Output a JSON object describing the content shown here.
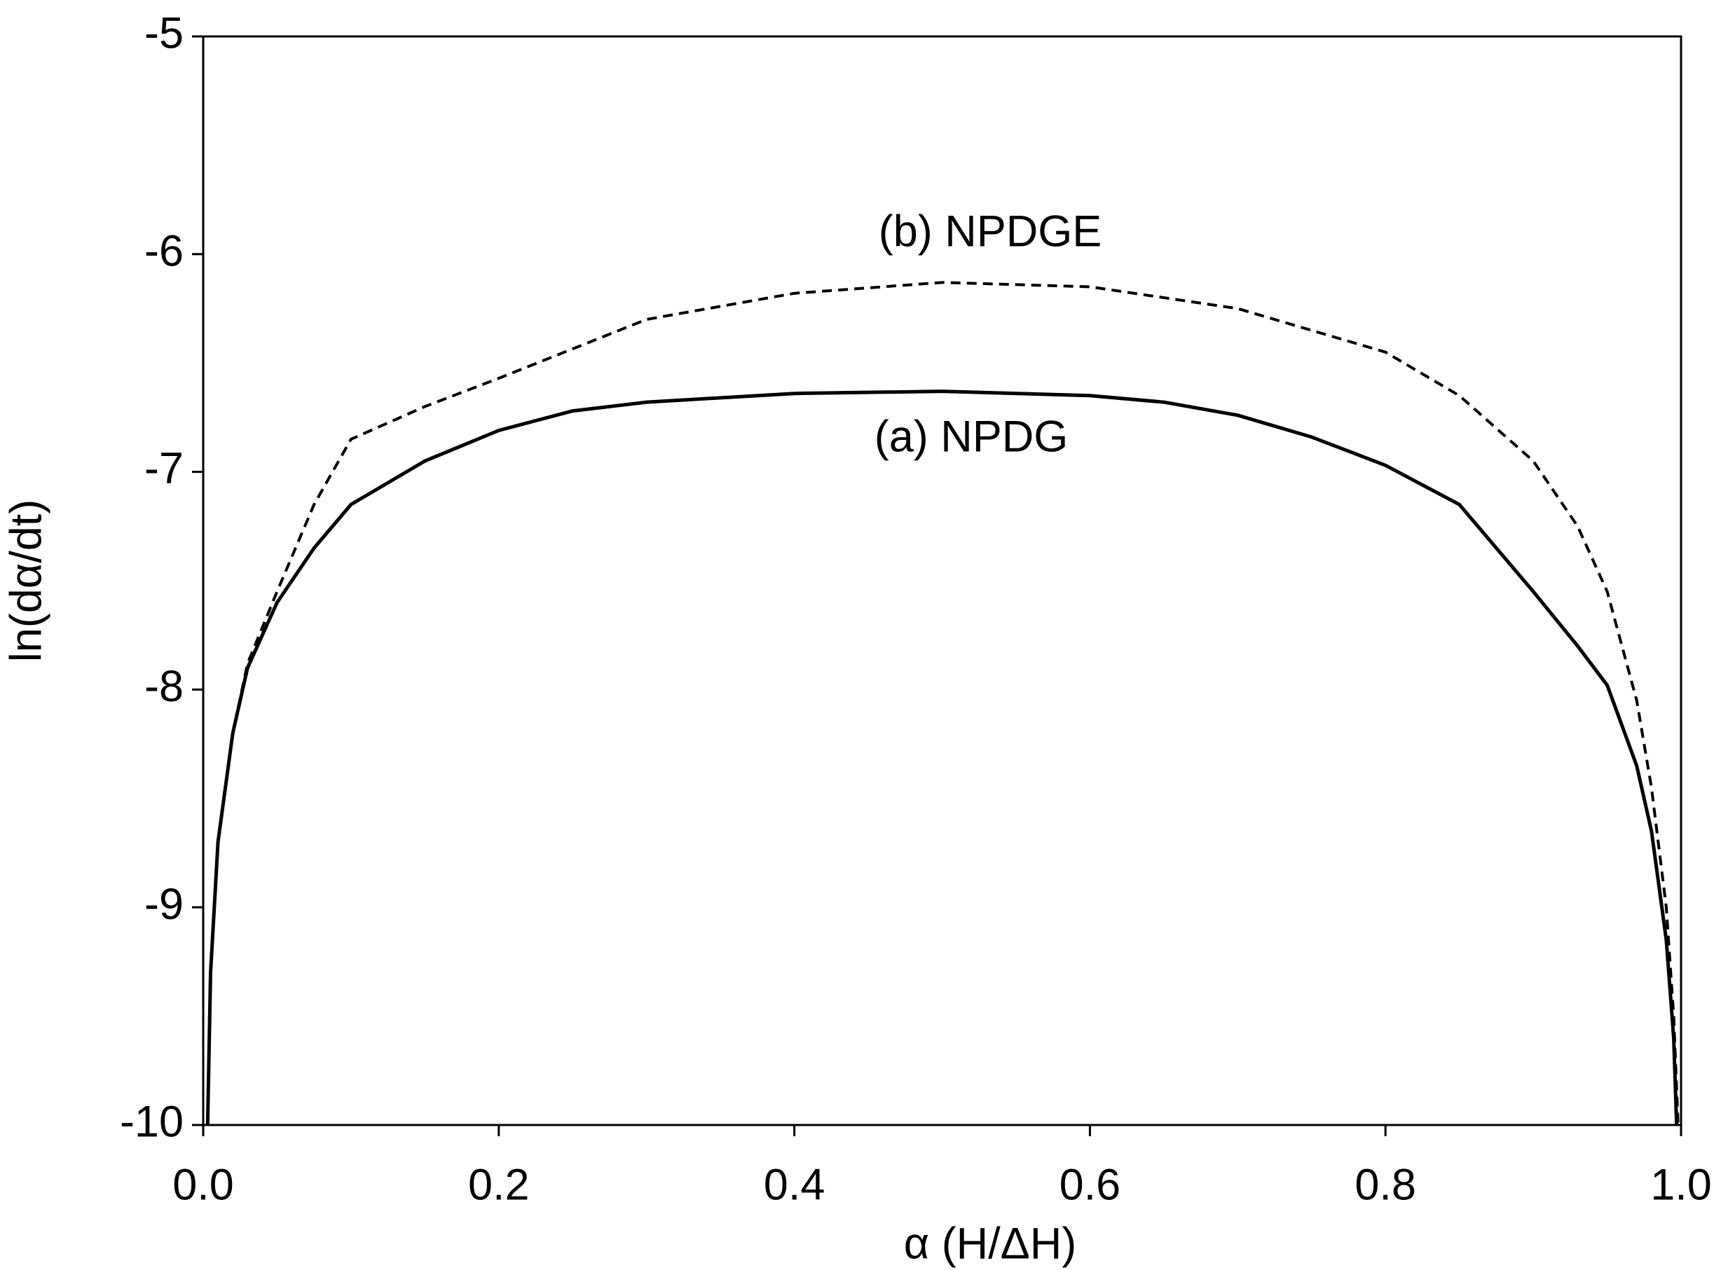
{
  "chart_data": {
    "type": "line",
    "xlabel": "α (H/ΔH)",
    "ylabel": "ln(dα/dt)",
    "annotations": [
      "(b) NPDGE",
      "(a) NPDG"
    ],
    "xlim": [
      0,
      1
    ],
    "ylim": [
      -10,
      -5
    ],
    "xticks": [
      {
        "value": 0,
        "label": "0.0"
      },
      0.2,
      0.4,
      0.6,
      0.8,
      {
        "value": 1,
        "label": "1.0"
      }
    ],
    "yticks": [
      -10,
      -9,
      -8,
      -7,
      -6,
      -5
    ],
    "series": [
      {
        "name": "(a) NPDG",
        "color": "#000000",
        "dash": false,
        "x": [
          0.003,
          0.005,
          0.01,
          0.02,
          0.03,
          0.05,
          0.075,
          0.1,
          0.15,
          0.2,
          0.25,
          0.3,
          0.4,
          0.5,
          0.6,
          0.65,
          0.7,
          0.75,
          0.8,
          0.85,
          0.9,
          0.93,
          0.95,
          0.97,
          0.98,
          0.99,
          0.995,
          0.997
        ],
        "values": [
          -10,
          -9.3,
          -8.7,
          -8.2,
          -7.9,
          -7.6,
          -7.35,
          -7.15,
          -6.95,
          -6.81,
          -6.72,
          -6.68,
          -6.64,
          -6.63,
          -6.65,
          -6.68,
          -6.74,
          -6.84,
          -6.97,
          -7.15,
          -7.55,
          -7.8,
          -7.98,
          -8.35,
          -8.65,
          -9.15,
          -9.6,
          -10
        ]
      },
      {
        "name": "(b) NPDGE",
        "color": "#000000",
        "dash": true,
        "x": [
          0.003,
          0.005,
          0.01,
          0.02,
          0.03,
          0.05,
          0.075,
          0.1,
          0.15,
          0.2,
          0.3,
          0.4,
          0.5,
          0.6,
          0.7,
          0.8,
          0.85,
          0.9,
          0.93,
          0.95,
          0.97,
          0.98,
          0.99,
          0.995,
          0.998
        ],
        "values": [
          -10,
          -9.3,
          -8.7,
          -8.2,
          -7.88,
          -7.55,
          -7.15,
          -6.85,
          -6.7,
          -6.57,
          -6.3,
          -6.18,
          -6.13,
          -6.15,
          -6.25,
          -6.45,
          -6.65,
          -6.95,
          -7.25,
          -7.55,
          -8.05,
          -8.45,
          -9.0,
          -9.5,
          -10
        ]
      }
    ]
  }
}
